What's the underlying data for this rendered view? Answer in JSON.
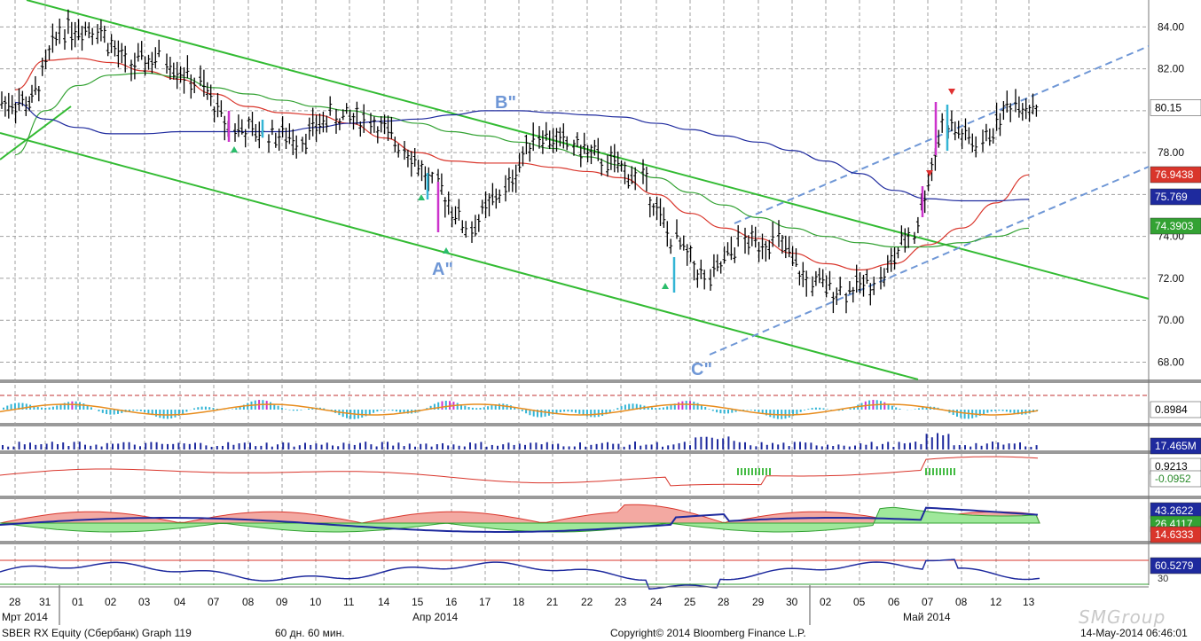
{
  "footer": {
    "security": "SBER RX Equity (Сбербанк) Graph 119",
    "period": "60 дн. 60 мин.",
    "copyright": "Copyright© 2014 Bloomberg Finance L.P.",
    "timestamp": "14-May-2014 06:46:01"
  },
  "watermark": "SMGroup",
  "colors": {
    "price_bar": "#000000",
    "ma_fast": "#d9352b",
    "ma_mid": "#33a233",
    "ma_slow": "#1e2a9e",
    "channel": "#33bb33",
    "dashed_channel": "#6f97d6",
    "wave_label": "#6f97d6",
    "hist_up": "#33b5d5",
    "hist_magenta": "#cc33cc",
    "signal_line": "#e88d1e",
    "volume": "#1e2a9e",
    "last_price_box": "#ffffff",
    "red_box": "#d9352b",
    "blue_box": "#1e2a9e",
    "green_box": "#33a233"
  },
  "chart_data": [
    {
      "type": "line",
      "panel": "price",
      "y_tick_labels": [
        "84.00",
        "82.00",
        "80.00",
        "78.00",
        "76.00",
        "74.00",
        "72.00",
        "70.00",
        "68.00"
      ],
      "ylim": [
        67.3,
        85.2
      ],
      "x_day_labels": [
        "28",
        "31",
        "01",
        "02",
        "03",
        "04",
        "07",
        "08",
        "09",
        "10",
        "11",
        "14",
        "15",
        "16",
        "17",
        "18",
        "21",
        "22",
        "23",
        "24",
        "25",
        "28",
        "29",
        "30",
        "02",
        "05",
        "06",
        "07",
        "08",
        "12",
        "13"
      ],
      "month_labels": [
        "Мрт 2014",
        "Апр 2014",
        "Май 2014"
      ],
      "last_values": {
        "price": "80.15",
        "ma_red": "76.9438",
        "ma_blue": "75.769",
        "ma_green": "74.3903"
      },
      "wave_labels": [
        "A\"",
        "B\"",
        "C\""
      ],
      "daily_close": [
        80.4,
        83.9,
        84.0,
        82.2,
        82.5,
        81.3,
        79.2,
        78.9,
        78.7,
        79.7,
        79.6,
        78.4,
        76.4,
        74.4,
        76.1,
        78.9,
        78.4,
        77.6,
        76.8,
        73.8,
        71.9,
        73.7,
        73.8,
        71.8,
        71.4,
        71.9,
        74.1,
        79.3,
        78.4,
        80.4,
        80.15
      ],
      "series": [
        {
          "name": "MA red",
          "values": [
            81.0,
            82.4,
            82.5,
            82.3,
            81.9,
            81.5,
            80.8,
            80.2,
            79.9,
            79.8,
            79.4,
            78.7,
            78.0,
            77.6,
            77.5,
            77.5,
            77.3,
            77.1,
            76.8,
            76.0,
            75.1,
            74.4,
            73.9,
            73.2,
            72.7,
            72.4,
            72.7,
            73.6,
            74.4,
            75.6,
            76.94
          ]
        },
        {
          "name": "MA green",
          "values": [
            77.9,
            80.0,
            81.2,
            81.7,
            81.8,
            81.6,
            81.1,
            80.8,
            80.5,
            80.2,
            80.0,
            79.7,
            79.4,
            79.0,
            78.8,
            78.5,
            78.2,
            77.8,
            77.4,
            76.8,
            76.1,
            75.5,
            74.9,
            74.4,
            74.0,
            73.7,
            73.5,
            73.5,
            73.7,
            74.0,
            74.39
          ]
        },
        {
          "name": "MA blue",
          "values": [
            80.4,
            79.6,
            79.2,
            78.9,
            78.9,
            79.0,
            79.0,
            79.0,
            79.0,
            79.2,
            79.4,
            79.5,
            79.6,
            79.8,
            80.0,
            80.0,
            79.9,
            79.8,
            79.7,
            79.4,
            79.1,
            78.8,
            78.5,
            78.1,
            77.6,
            77.0,
            76.2,
            75.8,
            75.7,
            75.7,
            75.77
          ]
        }
      ]
    },
    {
      "type": "bar",
      "panel": "oscillator-histogram",
      "last_value": "0.8984"
    },
    {
      "type": "bar",
      "panel": "volume",
      "last_value": "17.465M"
    },
    {
      "type": "line",
      "panel": "oscillator-2",
      "last_values": [
        "0.9213",
        "-0.0952"
      ]
    },
    {
      "type": "area",
      "panel": "dmi",
      "last_values": [
        "43.2622",
        "26.4117",
        "14.6333"
      ]
    },
    {
      "type": "line",
      "panel": "rsi",
      "last_values": [
        "60.5279",
        "30"
      ]
    }
  ]
}
